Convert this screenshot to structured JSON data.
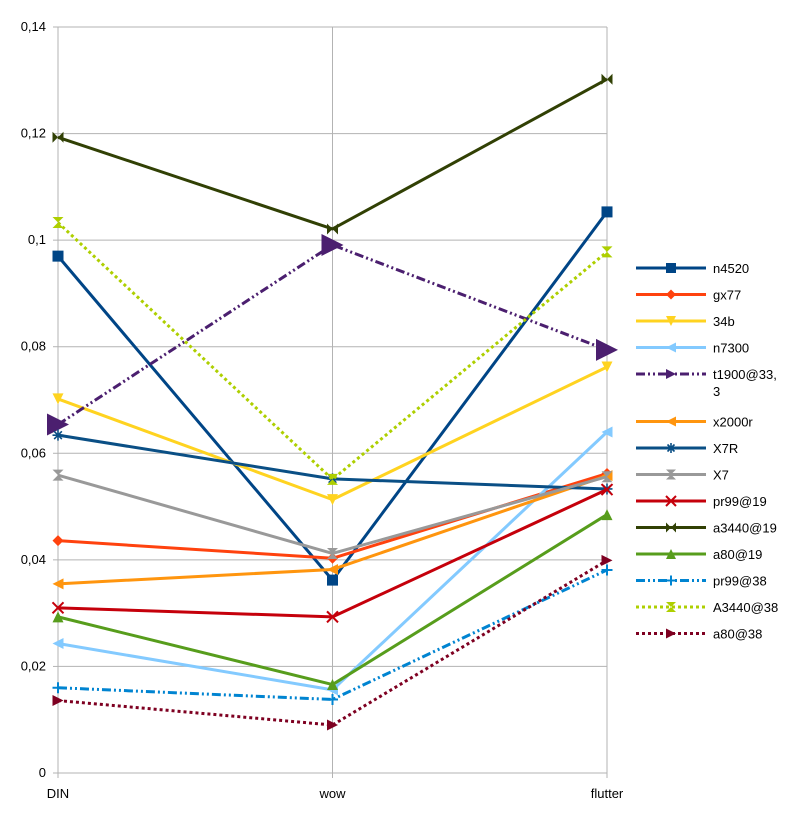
{
  "chart_data": {
    "type": "line",
    "title": "",
    "xlabel": "",
    "ylabel": "",
    "categories": [
      "DIN",
      "wow",
      "flutter"
    ],
    "ylim": [
      0,
      0.14
    ],
    "yticks": [
      0,
      0.02,
      0.04,
      0.06,
      0.08,
      0.1,
      0.12,
      0.14
    ],
    "ytick_labels": [
      "0",
      "0,02",
      "0,04",
      "0,06",
      "0,08",
      "0,1",
      "0,12",
      "0,14"
    ],
    "grid": "horizontal",
    "legend": "right",
    "series": [
      {
        "name": "n4520",
        "values": [
          0.097,
          0.0362,
          0.1053
        ],
        "color": "#004586",
        "marker": "square",
        "dash": "solid"
      },
      {
        "name": "gx77",
        "values": [
          0.0436,
          0.0403,
          0.0562
        ],
        "color": "#ff420e",
        "marker": "diamond",
        "dash": "solid"
      },
      {
        "name": "34b",
        "values": [
          0.0702,
          0.0513,
          0.0762
        ],
        "color": "#ffd320",
        "marker": "triangle-down",
        "dash": "solid"
      },
      {
        "name": "n7300",
        "values": [
          0.0243,
          0.0156,
          0.064
        ],
        "color": "#83caff",
        "marker": "triangle-left",
        "dash": "solid"
      },
      {
        "name": "t1900@33,3",
        "legend_lines": [
          "t1900@33,",
          "3"
        ],
        "values": [
          0.0654,
          0.0991,
          0.0794
        ],
        "color": "#4b1f6f",
        "marker": "triangle-right",
        "dash": "dashdotdot"
      },
      {
        "name": "x2000r",
        "values": [
          0.0355,
          0.0382,
          0.0558
        ],
        "color": "#ff950e",
        "marker": "triangle-left",
        "dash": "solid"
      },
      {
        "name": "X7R",
        "values": [
          0.0634,
          0.0552,
          0.0533
        ],
        "color": "#0a4f85",
        "marker": "asterisk",
        "dash": "solid"
      },
      {
        "name": "X7",
        "values": [
          0.0559,
          0.0412,
          0.0556
        ],
        "color": "#999999",
        "marker": "bowtie-v",
        "dash": "solid"
      },
      {
        "name": "pr99@19",
        "values": [
          0.031,
          0.0293,
          0.0532
        ],
        "color": "#c5000b",
        "marker": "x",
        "dash": "solid"
      },
      {
        "name": "a3440@19",
        "values": [
          0.1193,
          0.1021,
          0.1302
        ],
        "color": "#314004",
        "marker": "bowtie-h",
        "dash": "solid"
      },
      {
        "name": "a80@19",
        "values": [
          0.0293,
          0.0166,
          0.0485
        ],
        "color": "#579d1c",
        "marker": "triangle-up",
        "dash": "solid"
      },
      {
        "name": "pr99@38",
        "values": [
          0.016,
          0.0138,
          0.0381
        ],
        "color": "#0084d1",
        "marker": "plus",
        "dash": "dashdotdot"
      },
      {
        "name": "A3440@38",
        "values": [
          0.1033,
          0.0551,
          0.0978
        ],
        "color": "#aecf00",
        "marker": "bowtie-v",
        "dash": "dotted"
      },
      {
        "name": "a80@38",
        "values": [
          0.0136,
          0.009,
          0.0399
        ],
        "color": "#7e0021",
        "marker": "triangle-right",
        "dash": "dotted"
      }
    ]
  }
}
